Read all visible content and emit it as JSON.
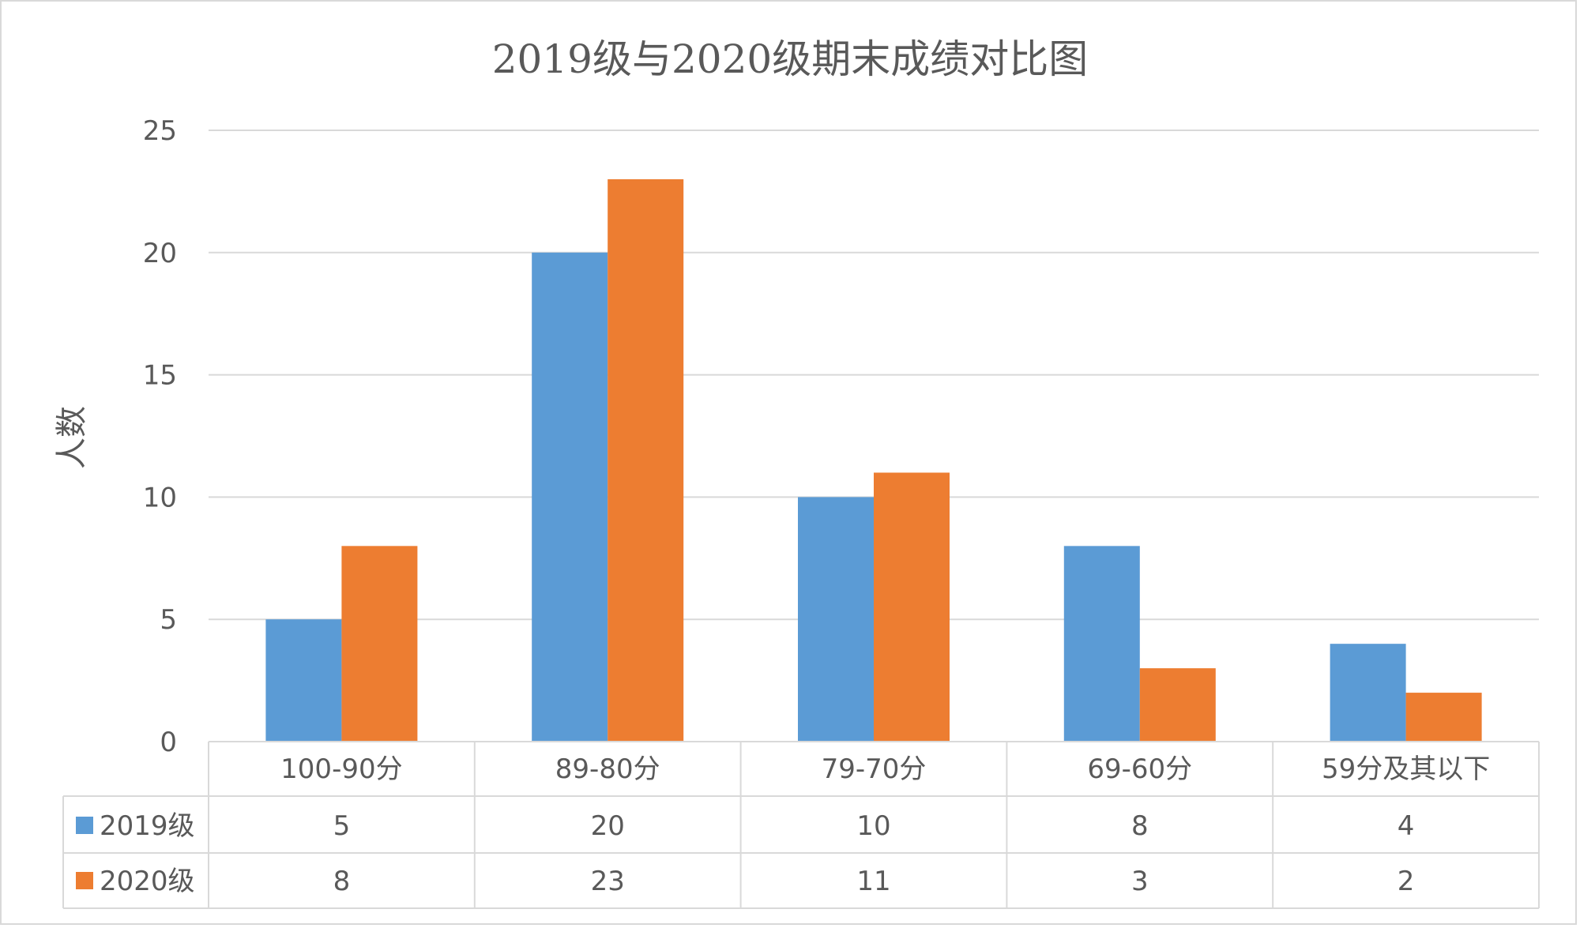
{
  "chart_data": {
    "type": "bar",
    "title": "2019级与2020级期末成绩对比图",
    "ylabel": "人数",
    "xlabel": "",
    "ylim": [
      0,
      25
    ],
    "yticks": [
      0,
      5,
      10,
      15,
      20,
      25
    ],
    "grid": true,
    "legend": "data-table",
    "categories": [
      "100-90分",
      "89-80分",
      "79-70分",
      "69-60分",
      "59分及其以下"
    ],
    "series": [
      {
        "name": "2019级",
        "color": "#5b9bd5",
        "values": [
          5,
          20,
          10,
          8,
          4
        ]
      },
      {
        "name": "2020级",
        "color": "#ed7d31",
        "values": [
          8,
          23,
          11,
          3,
          2
        ]
      }
    ]
  }
}
